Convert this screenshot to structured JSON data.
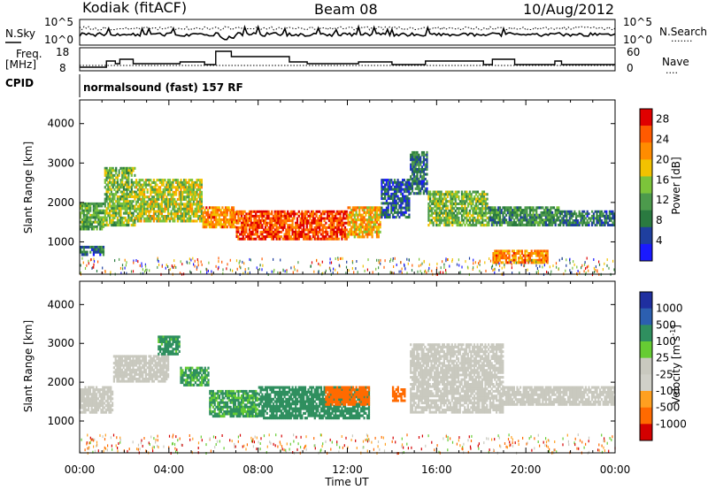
{
  "header": {
    "station": "Kodiak (fitACF)",
    "beam": "Beam 08",
    "date": "10/Aug/2012"
  },
  "noise_panel": {
    "left_label": "N.Sky",
    "right_label": "N.Search",
    "right_label_dots": "·······",
    "left_ticks": [
      "10^5",
      "10^0"
    ],
    "right_ticks": [
      "10^5",
      "10^0"
    ]
  },
  "freq_panel": {
    "left_label_1": "Freq.",
    "left_label_2": "[MHz]",
    "right_label": "Nave",
    "right_label_dots": "····",
    "left_ticks": [
      "18",
      "8"
    ],
    "right_ticks": [
      "60",
      "0"
    ]
  },
  "cpid_panel": {
    "label": "CPID",
    "text": "normalsound (fast) 157 RF"
  },
  "colors": {
    "power_scale": [
      "#1a1aff",
      "#1f3f9f",
      "#2a7a40",
      "#4c9a4c",
      "#7cc43a",
      "#f2c200",
      "#ff8c00",
      "#ff5a00",
      "#e00000"
    ],
    "velocity_scale": [
      "#d40000",
      "#ff6a00",
      "#ffa020",
      "#c9c9bf",
      "#d0d0c8",
      "#66cc33",
      "#2f8f5f",
      "#2c5fb0",
      "#1f2fa0"
    ],
    "ground_scatter": "#c9c9bf"
  },
  "chart_data": [
    {
      "type": "heatmap",
      "title": "",
      "xlabel": "Time UT",
      "ylabel": "Slant Range [km]",
      "xlim": [
        "00:00",
        "24:00"
      ],
      "ylim": [
        180,
        4600
      ],
      "x_ticks": [
        "00:00",
        "04:00",
        "08:00",
        "12:00",
        "16:00",
        "20:00",
        "00:00"
      ],
      "y_ticks": [
        1000,
        2000,
        3000,
        4000
      ],
      "colorbar": {
        "label": "Power [dB]",
        "ticks": [
          "4",
          "8",
          "12",
          "16",
          "20",
          "24",
          "28"
        ],
        "range": [
          0,
          30
        ]
      },
      "regions": [
        {
          "t0": 0.0,
          "t1": 1.1,
          "r0": 1300,
          "r1": 2000,
          "value": 12
        },
        {
          "t0": 0.0,
          "t1": 1.1,
          "r0": 650,
          "r1": 900,
          "value": 8
        },
        {
          "t0": 1.1,
          "t1": 2.5,
          "r0": 1400,
          "r1": 2900,
          "value": 14
        },
        {
          "t0": 2.5,
          "t1": 5.5,
          "r0": 1500,
          "r1": 2600,
          "value": 16
        },
        {
          "t0": 5.5,
          "t1": 7.0,
          "r0": 1350,
          "r1": 1900,
          "value": 22
        },
        {
          "t0": 7.0,
          "t1": 12.0,
          "r0": 1050,
          "r1": 1800,
          "value": 26
        },
        {
          "t0": 12.0,
          "t1": 13.5,
          "r0": 1100,
          "r1": 1900,
          "value": 20
        },
        {
          "t0": 13.5,
          "t1": 14.8,
          "r0": 1600,
          "r1": 2600,
          "value": 6
        },
        {
          "t0": 14.8,
          "t1": 15.6,
          "r0": 2200,
          "r1": 3300,
          "value": 8
        },
        {
          "t0": 15.6,
          "t1": 18.3,
          "r0": 1400,
          "r1": 2300,
          "value": 14
        },
        {
          "t0": 18.3,
          "t1": 21.5,
          "r0": 1400,
          "r1": 1900,
          "value": 10
        },
        {
          "t0": 18.5,
          "t1": 21.0,
          "r0": 450,
          "r1": 800,
          "value": 22
        },
        {
          "t0": 21.5,
          "t1": 24.0,
          "r0": 1400,
          "r1": 1800,
          "value": 8
        }
      ]
    },
    {
      "type": "heatmap",
      "title": "",
      "xlabel": "Time UT",
      "ylabel": "Slant Range [km]",
      "xlim": [
        "00:00",
        "24:00"
      ],
      "ylim": [
        180,
        4600
      ],
      "x_ticks": [
        "00:00",
        "04:00",
        "08:00",
        "12:00",
        "16:00",
        "20:00",
        "00:00"
      ],
      "y_ticks": [
        1000,
        2000,
        3000,
        4000
      ],
      "colorbar": {
        "label": "Velocity [m s^-1]",
        "ticks": [
          "1000",
          "500",
          "100",
          "25",
          "-25",
          "-100",
          "-500",
          "-1000"
        ]
      },
      "regions": [
        {
          "t0": 0.0,
          "t1": 1.5,
          "r0": 1200,
          "r1": 1900,
          "value": 0
        },
        {
          "t0": 1.5,
          "t1": 4.0,
          "r0": 2000,
          "r1": 2700,
          "value": 0
        },
        {
          "t0": 3.5,
          "t1": 4.5,
          "r0": 2700,
          "r1": 3200,
          "value": 150
        },
        {
          "t0": 4.5,
          "t1": 5.8,
          "r0": 1900,
          "r1": 2400,
          "value": 120
        },
        {
          "t0": 5.8,
          "t1": 8.0,
          "r0": 1100,
          "r1": 1800,
          "value": 120
        },
        {
          "t0": 8.0,
          "t1": 13.0,
          "r0": 1050,
          "r1": 1900,
          "value": 200
        },
        {
          "t0": 11.0,
          "t1": 13.0,
          "r0": 1400,
          "r1": 1900,
          "value": -200
        },
        {
          "t0": 14.0,
          "t1": 14.6,
          "r0": 1500,
          "r1": 1900,
          "value": -300
        },
        {
          "t0": 14.8,
          "t1": 19.0,
          "r0": 1200,
          "r1": 3000,
          "value": 0
        },
        {
          "t0": 19.0,
          "t1": 24.0,
          "r0": 1400,
          "r1": 1900,
          "value": 0
        }
      ]
    }
  ]
}
